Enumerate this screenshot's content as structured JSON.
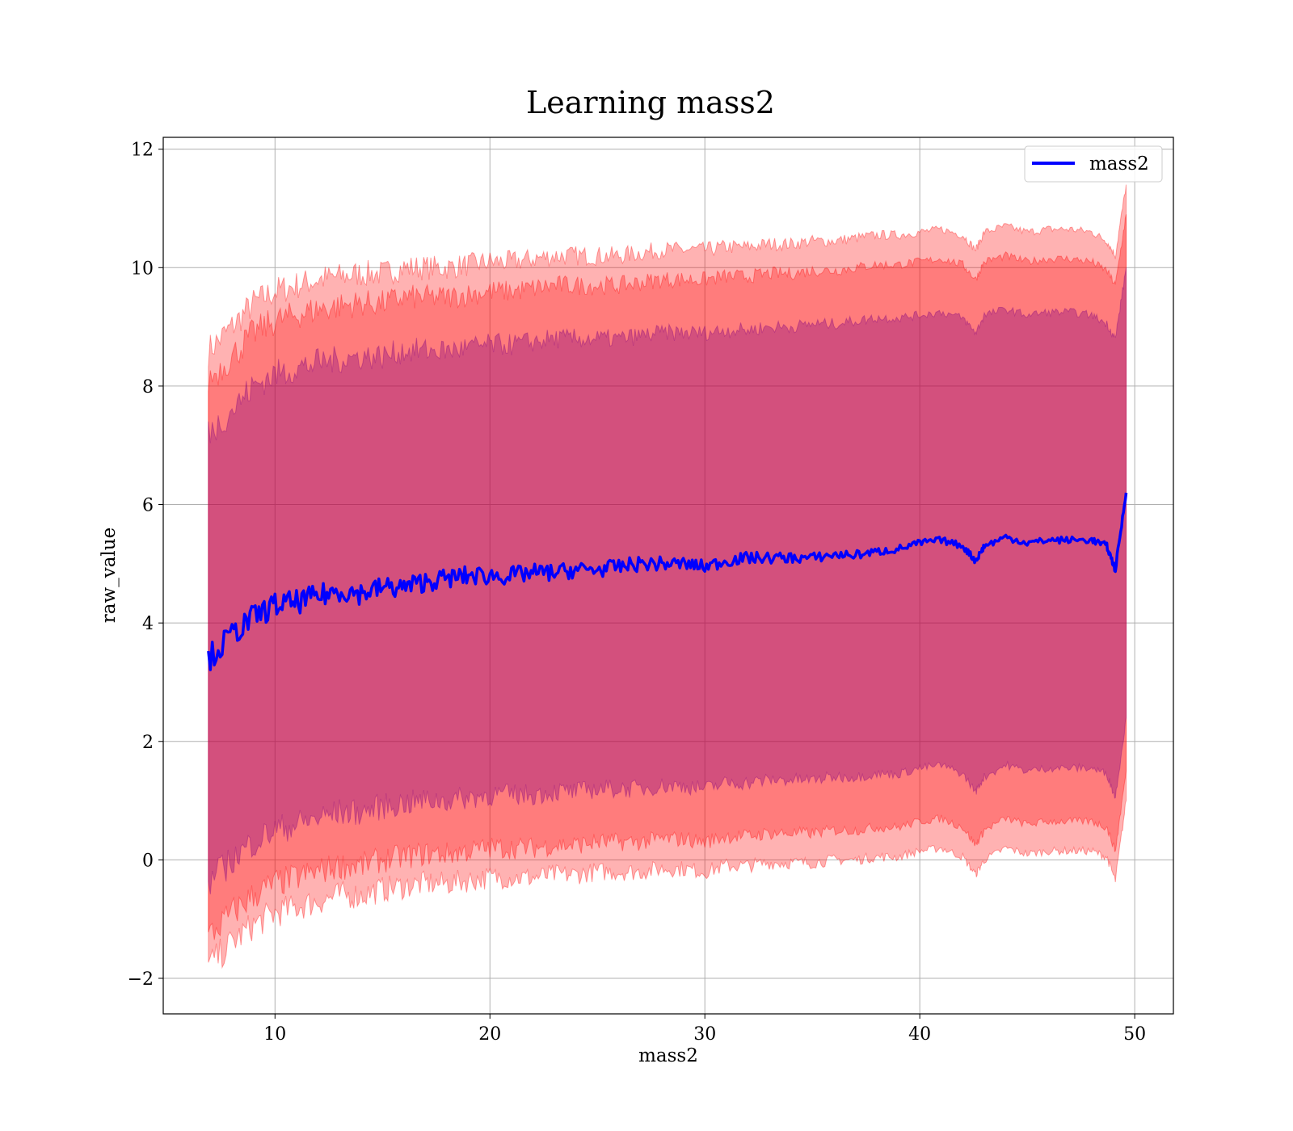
{
  "chart_data": {
    "type": "area",
    "title": "Learning mass2",
    "xlabel": "mass2",
    "ylabel": "raw_value",
    "xlim": [
      4.8,
      51.8
    ],
    "ylim": [
      -2.6,
      12.2
    ],
    "xticks": [
      "10",
      "20",
      "30",
      "40",
      "50"
    ],
    "xtick_values": [
      10,
      20,
      30,
      40,
      50
    ],
    "yticks": [
      "−2",
      "0",
      "2",
      "4",
      "6",
      "8",
      "10",
      "12"
    ],
    "ytick_values": [
      -2,
      0,
      2,
      4,
      6,
      8,
      10,
      12
    ],
    "grid": true,
    "legend": {
      "position": "top-right",
      "entries": [
        "mass2"
      ]
    },
    "colors": {
      "line": "#0000ff",
      "band_outer": "#ff0000",
      "band_middle": "#ff0000",
      "band_inner": "#800080",
      "grid": "#b0b0b0"
    },
    "x": [
      6.9,
      8,
      9,
      10,
      11,
      12,
      13,
      14,
      15,
      16,
      17,
      18,
      19,
      20,
      21,
      22,
      23,
      24,
      25,
      26,
      27,
      28,
      29,
      30,
      31,
      32,
      33,
      34,
      35,
      36,
      37,
      38,
      39,
      40,
      41,
      42,
      42.6,
      43,
      44,
      45,
      46,
      47,
      48,
      48.7,
      49.1,
      49.6
    ],
    "series": [
      {
        "name": "mass2",
        "role": "line",
        "values": [
          3.4,
          3.8,
          4.1,
          4.3,
          4.35,
          4.45,
          4.55,
          4.5,
          4.6,
          4.6,
          4.7,
          4.75,
          4.8,
          4.8,
          4.8,
          4.85,
          4.85,
          4.9,
          4.9,
          4.95,
          5.0,
          5.0,
          5.0,
          4.95,
          5.05,
          5.1,
          5.1,
          5.1,
          5.1,
          5.15,
          5.15,
          5.2,
          5.25,
          5.35,
          5.4,
          5.3,
          5.05,
          5.3,
          5.45,
          5.35,
          5.4,
          5.4,
          5.4,
          5.3,
          4.9,
          6.2
        ]
      },
      {
        "name": "outer band",
        "role": "band",
        "upper": [
          8.6,
          9.0,
          9.4,
          9.6,
          9.7,
          9.8,
          9.85,
          9.9,
          9.9,
          10.0,
          10.0,
          10.0,
          10.05,
          10.1,
          10.1,
          10.15,
          10.2,
          10.2,
          10.2,
          10.2,
          10.25,
          10.3,
          10.3,
          10.3,
          10.35,
          10.35,
          10.4,
          10.4,
          10.45,
          10.45,
          10.5,
          10.55,
          10.55,
          10.6,
          10.65,
          10.55,
          10.3,
          10.6,
          10.7,
          10.6,
          10.65,
          10.65,
          10.6,
          10.45,
          10.2,
          11.4
        ],
        "lower": [
          -1.8,
          -1.4,
          -1.1,
          -0.9,
          -0.8,
          -0.7,
          -0.6,
          -0.6,
          -0.5,
          -0.45,
          -0.4,
          -0.4,
          -0.35,
          -0.3,
          -0.3,
          -0.3,
          -0.25,
          -0.25,
          -0.2,
          -0.2,
          -0.2,
          -0.15,
          -0.15,
          -0.2,
          -0.1,
          -0.1,
          -0.05,
          -0.05,
          -0.05,
          0.0,
          0.0,
          0.05,
          0.05,
          0.15,
          0.2,
          0.05,
          -0.25,
          0.0,
          0.2,
          0.1,
          0.15,
          0.15,
          0.15,
          0.05,
          -0.35,
          1.0
        ]
      },
      {
        "name": "middle band",
        "role": "band",
        "upper": [
          8.1,
          8.5,
          8.9,
          9.1,
          9.2,
          9.3,
          9.35,
          9.4,
          9.4,
          9.5,
          9.5,
          9.5,
          9.55,
          9.6,
          9.6,
          9.65,
          9.7,
          9.7,
          9.7,
          9.7,
          9.75,
          9.8,
          9.8,
          9.8,
          9.85,
          9.85,
          9.9,
          9.9,
          9.95,
          9.95,
          10.0,
          10.05,
          10.05,
          10.1,
          10.15,
          10.05,
          9.8,
          10.1,
          10.2,
          10.1,
          10.15,
          10.15,
          10.1,
          9.95,
          9.7,
          10.9
        ],
        "lower": [
          -1.3,
          -0.9,
          -0.6,
          -0.4,
          -0.3,
          -0.2,
          -0.1,
          -0.1,
          0.0,
          0.05,
          0.1,
          0.1,
          0.15,
          0.2,
          0.2,
          0.2,
          0.25,
          0.25,
          0.3,
          0.3,
          0.3,
          0.35,
          0.35,
          0.3,
          0.4,
          0.4,
          0.45,
          0.45,
          0.45,
          0.5,
          0.5,
          0.55,
          0.55,
          0.65,
          0.7,
          0.55,
          0.25,
          0.5,
          0.7,
          0.6,
          0.65,
          0.65,
          0.65,
          0.55,
          0.15,
          1.5
        ]
      },
      {
        "name": "inner band",
        "role": "band",
        "upper": [
          7.2,
          7.6,
          8.0,
          8.2,
          8.3,
          8.4,
          8.45,
          8.5,
          8.5,
          8.6,
          8.6,
          8.6,
          8.65,
          8.7,
          8.7,
          8.75,
          8.8,
          8.8,
          8.8,
          8.8,
          8.85,
          8.9,
          8.9,
          8.9,
          8.95,
          8.95,
          9.0,
          9.0,
          9.05,
          9.05,
          9.1,
          9.15,
          9.15,
          9.2,
          9.25,
          9.15,
          8.9,
          9.2,
          9.3,
          9.2,
          9.25,
          9.25,
          9.2,
          9.05,
          8.8,
          10.0
        ],
        "lower": [
          -0.4,
          0.0,
          0.3,
          0.5,
          0.6,
          0.7,
          0.8,
          0.8,
          0.9,
          0.95,
          1.0,
          1.0,
          1.05,
          1.1,
          1.1,
          1.1,
          1.15,
          1.15,
          1.2,
          1.2,
          1.2,
          1.25,
          1.25,
          1.2,
          1.3,
          1.3,
          1.35,
          1.35,
          1.35,
          1.4,
          1.4,
          1.45,
          1.45,
          1.55,
          1.6,
          1.45,
          1.15,
          1.4,
          1.6,
          1.5,
          1.55,
          1.55,
          1.55,
          1.45,
          1.05,
          2.4
        ]
      }
    ]
  }
}
